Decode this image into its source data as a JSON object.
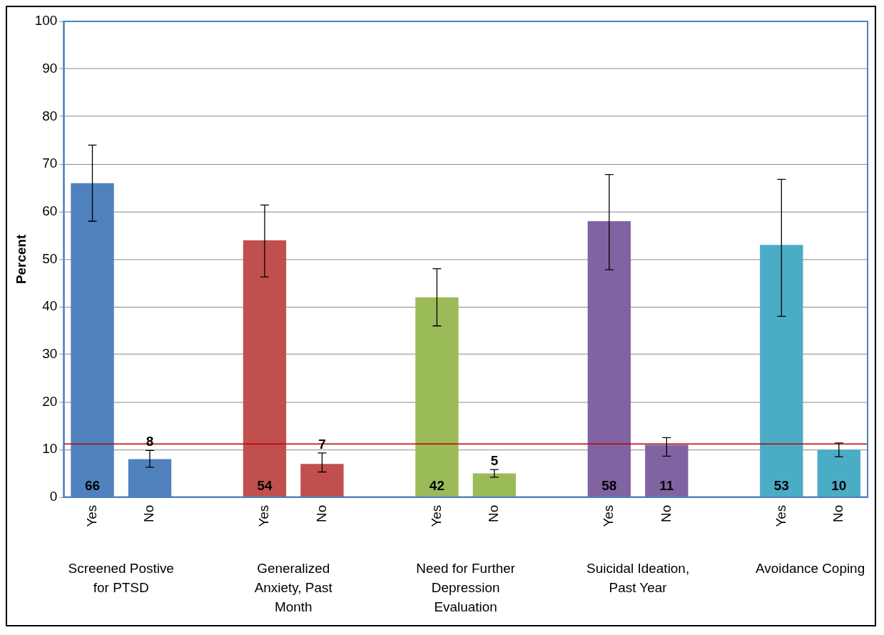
{
  "chart_data": {
    "type": "bar",
    "ylabel": "Percent",
    "categories": [
      "Yes",
      "No",
      null,
      "Yes",
      "No",
      null,
      "Yes",
      "No",
      null,
      "Yes",
      "No",
      null,
      "Yes",
      "No"
    ],
    "values": [
      66,
      8,
      null,
      54,
      7,
      null,
      42,
      5,
      null,
      58,
      11,
      null,
      53,
      10
    ],
    "colors": [
      "#4f81bd",
      "#4f81bd",
      "#4f81bd",
      "#c0504d",
      "#c0504d",
      "#c0504d",
      "#9bbb59",
      "#9bbb59",
      "#9bbb59",
      "#8064a2",
      "#8064a2",
      "#8064a2",
      "#4bacc6",
      "#4bacc6"
    ],
    "errors": [
      [
        58,
        74
      ],
      [
        6.3,
        9.8
      ],
      null,
      [
        46.3,
        61.4
      ],
      [
        5.3,
        9.3
      ],
      null,
      [
        36,
        48
      ],
      [
        4.2,
        5.8
      ],
      null,
      [
        47.8,
        67.8
      ],
      [
        8.6,
        12.5
      ],
      null,
      [
        38,
        66.8
      ],
      [
        8.5,
        11.4
      ]
    ],
    "ylim": [
      0,
      100
    ],
    "yticks": [
      0,
      10,
      20,
      30,
      40,
      50,
      60,
      70,
      80,
      90,
      100
    ],
    "grid": "y",
    "legend": false,
    "data_labels": true,
    "ref_lines": [
      {
        "axis": "y",
        "value": 11.2,
        "color": "#c00000"
      }
    ],
    "annotations": [
      "Screened Postive for PTSD",
      "Generalized Anxiety, Past Month",
      "Need for Further Depression Evaluation",
      "Suicidal Ideation, Past Year",
      "Avoidance Coping"
    ]
  }
}
